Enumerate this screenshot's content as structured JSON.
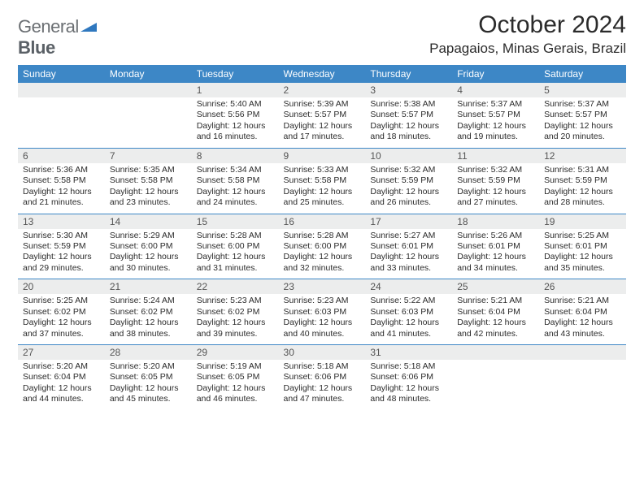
{
  "brand": {
    "part1": "General",
    "part2": "Blue"
  },
  "title": "October 2024",
  "location": "Papagaios, Minas Gerais, Brazil",
  "colors": {
    "header_bg": "#3d87c6",
    "header_text": "#ffffff",
    "daynum_bg": "#eceded",
    "rule": "#3d87c6",
    "logo_gray": "#6b6f73",
    "logo_blue": "#2f78bf"
  },
  "weekdays": [
    "Sunday",
    "Monday",
    "Tuesday",
    "Wednesday",
    "Thursday",
    "Friday",
    "Saturday"
  ],
  "weeks": [
    [
      null,
      null,
      {
        "n": "1",
        "sr": "Sunrise: 5:40 AM",
        "ss": "Sunset: 5:56 PM",
        "d1": "Daylight: 12 hours",
        "d2": "and 16 minutes."
      },
      {
        "n": "2",
        "sr": "Sunrise: 5:39 AM",
        "ss": "Sunset: 5:57 PM",
        "d1": "Daylight: 12 hours",
        "d2": "and 17 minutes."
      },
      {
        "n": "3",
        "sr": "Sunrise: 5:38 AM",
        "ss": "Sunset: 5:57 PM",
        "d1": "Daylight: 12 hours",
        "d2": "and 18 minutes."
      },
      {
        "n": "4",
        "sr": "Sunrise: 5:37 AM",
        "ss": "Sunset: 5:57 PM",
        "d1": "Daylight: 12 hours",
        "d2": "and 19 minutes."
      },
      {
        "n": "5",
        "sr": "Sunrise: 5:37 AM",
        "ss": "Sunset: 5:57 PM",
        "d1": "Daylight: 12 hours",
        "d2": "and 20 minutes."
      }
    ],
    [
      {
        "n": "6",
        "sr": "Sunrise: 5:36 AM",
        "ss": "Sunset: 5:58 PM",
        "d1": "Daylight: 12 hours",
        "d2": "and 21 minutes."
      },
      {
        "n": "7",
        "sr": "Sunrise: 5:35 AM",
        "ss": "Sunset: 5:58 PM",
        "d1": "Daylight: 12 hours",
        "d2": "and 23 minutes."
      },
      {
        "n": "8",
        "sr": "Sunrise: 5:34 AM",
        "ss": "Sunset: 5:58 PM",
        "d1": "Daylight: 12 hours",
        "d2": "and 24 minutes."
      },
      {
        "n": "9",
        "sr": "Sunrise: 5:33 AM",
        "ss": "Sunset: 5:58 PM",
        "d1": "Daylight: 12 hours",
        "d2": "and 25 minutes."
      },
      {
        "n": "10",
        "sr": "Sunrise: 5:32 AM",
        "ss": "Sunset: 5:59 PM",
        "d1": "Daylight: 12 hours",
        "d2": "and 26 minutes."
      },
      {
        "n": "11",
        "sr": "Sunrise: 5:32 AM",
        "ss": "Sunset: 5:59 PM",
        "d1": "Daylight: 12 hours",
        "d2": "and 27 minutes."
      },
      {
        "n": "12",
        "sr": "Sunrise: 5:31 AM",
        "ss": "Sunset: 5:59 PM",
        "d1": "Daylight: 12 hours",
        "d2": "and 28 minutes."
      }
    ],
    [
      {
        "n": "13",
        "sr": "Sunrise: 5:30 AM",
        "ss": "Sunset: 5:59 PM",
        "d1": "Daylight: 12 hours",
        "d2": "and 29 minutes."
      },
      {
        "n": "14",
        "sr": "Sunrise: 5:29 AM",
        "ss": "Sunset: 6:00 PM",
        "d1": "Daylight: 12 hours",
        "d2": "and 30 minutes."
      },
      {
        "n": "15",
        "sr": "Sunrise: 5:28 AM",
        "ss": "Sunset: 6:00 PM",
        "d1": "Daylight: 12 hours",
        "d2": "and 31 minutes."
      },
      {
        "n": "16",
        "sr": "Sunrise: 5:28 AM",
        "ss": "Sunset: 6:00 PM",
        "d1": "Daylight: 12 hours",
        "d2": "and 32 minutes."
      },
      {
        "n": "17",
        "sr": "Sunrise: 5:27 AM",
        "ss": "Sunset: 6:01 PM",
        "d1": "Daylight: 12 hours",
        "d2": "and 33 minutes."
      },
      {
        "n": "18",
        "sr": "Sunrise: 5:26 AM",
        "ss": "Sunset: 6:01 PM",
        "d1": "Daylight: 12 hours",
        "d2": "and 34 minutes."
      },
      {
        "n": "19",
        "sr": "Sunrise: 5:25 AM",
        "ss": "Sunset: 6:01 PM",
        "d1": "Daylight: 12 hours",
        "d2": "and 35 minutes."
      }
    ],
    [
      {
        "n": "20",
        "sr": "Sunrise: 5:25 AM",
        "ss": "Sunset: 6:02 PM",
        "d1": "Daylight: 12 hours",
        "d2": "and 37 minutes."
      },
      {
        "n": "21",
        "sr": "Sunrise: 5:24 AM",
        "ss": "Sunset: 6:02 PM",
        "d1": "Daylight: 12 hours",
        "d2": "and 38 minutes."
      },
      {
        "n": "22",
        "sr": "Sunrise: 5:23 AM",
        "ss": "Sunset: 6:02 PM",
        "d1": "Daylight: 12 hours",
        "d2": "and 39 minutes."
      },
      {
        "n": "23",
        "sr": "Sunrise: 5:23 AM",
        "ss": "Sunset: 6:03 PM",
        "d1": "Daylight: 12 hours",
        "d2": "and 40 minutes."
      },
      {
        "n": "24",
        "sr": "Sunrise: 5:22 AM",
        "ss": "Sunset: 6:03 PM",
        "d1": "Daylight: 12 hours",
        "d2": "and 41 minutes."
      },
      {
        "n": "25",
        "sr": "Sunrise: 5:21 AM",
        "ss": "Sunset: 6:04 PM",
        "d1": "Daylight: 12 hours",
        "d2": "and 42 minutes."
      },
      {
        "n": "26",
        "sr": "Sunrise: 5:21 AM",
        "ss": "Sunset: 6:04 PM",
        "d1": "Daylight: 12 hours",
        "d2": "and 43 minutes."
      }
    ],
    [
      {
        "n": "27",
        "sr": "Sunrise: 5:20 AM",
        "ss": "Sunset: 6:04 PM",
        "d1": "Daylight: 12 hours",
        "d2": "and 44 minutes."
      },
      {
        "n": "28",
        "sr": "Sunrise: 5:20 AM",
        "ss": "Sunset: 6:05 PM",
        "d1": "Daylight: 12 hours",
        "d2": "and 45 minutes."
      },
      {
        "n": "29",
        "sr": "Sunrise: 5:19 AM",
        "ss": "Sunset: 6:05 PM",
        "d1": "Daylight: 12 hours",
        "d2": "and 46 minutes."
      },
      {
        "n": "30",
        "sr": "Sunrise: 5:18 AM",
        "ss": "Sunset: 6:06 PM",
        "d1": "Daylight: 12 hours",
        "d2": "and 47 minutes."
      },
      {
        "n": "31",
        "sr": "Sunrise: 5:18 AM",
        "ss": "Sunset: 6:06 PM",
        "d1": "Daylight: 12 hours",
        "d2": "and 48 minutes."
      },
      null,
      null
    ]
  ]
}
